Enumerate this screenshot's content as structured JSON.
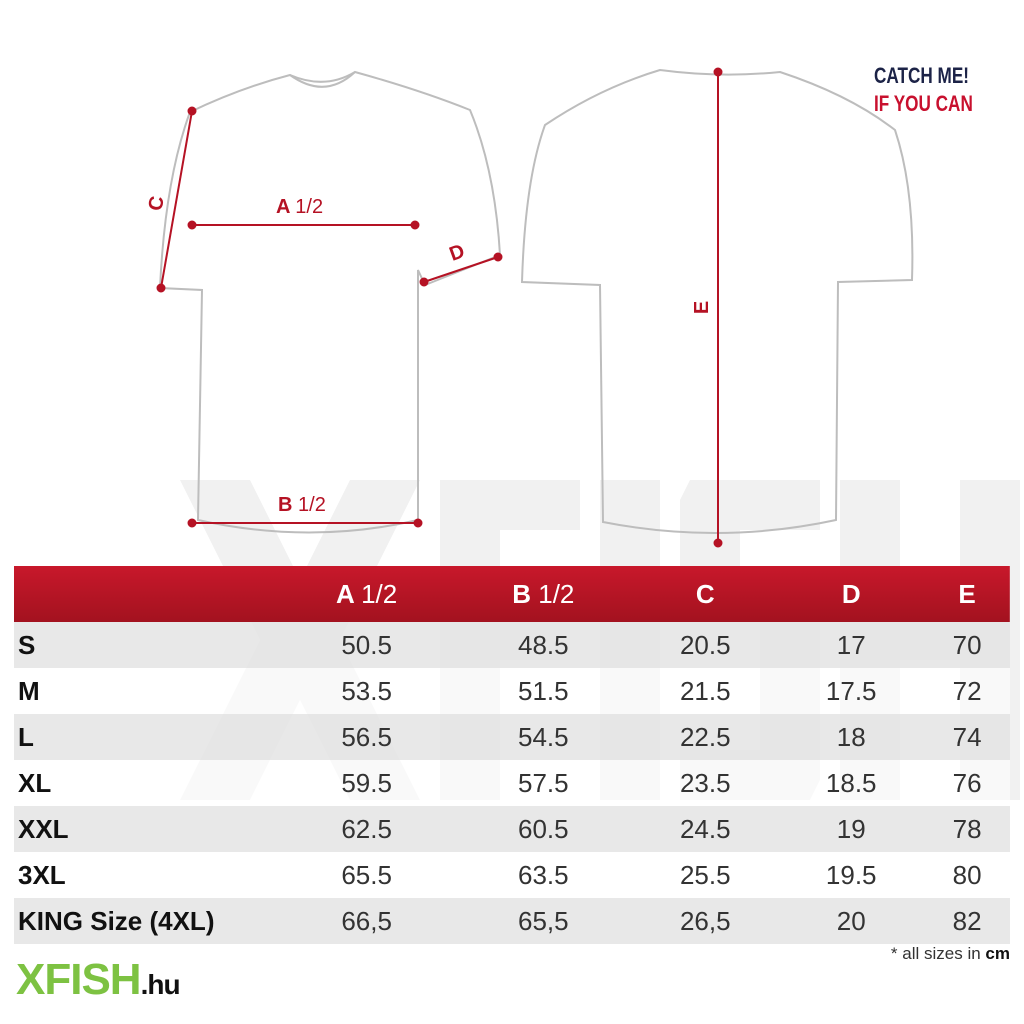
{
  "slogan": {
    "line1": "CATCH ME!",
    "line2": "IF YOU CAN"
  },
  "watermark": "XFISH",
  "diagram_labels": {
    "a": "A",
    "a_frac": "1/2",
    "b": "B",
    "b_frac": "1/2",
    "c": "C",
    "d": "D",
    "e": "E"
  },
  "colors": {
    "accent": "#c8182b",
    "logo_green": "#7dc242",
    "measure_line": "#b51224"
  },
  "table": {
    "headers": [
      {
        "letter": "A",
        "frac": "1/2"
      },
      {
        "letter": "B",
        "frac": "1/2"
      },
      {
        "letter": "C",
        "frac": ""
      },
      {
        "letter": "D",
        "frac": ""
      },
      {
        "letter": "E",
        "frac": ""
      }
    ],
    "rows": [
      {
        "size": "S",
        "values": [
          "50.5",
          "48.5",
          "20.5",
          "17",
          "70"
        ]
      },
      {
        "size": "M",
        "values": [
          "53.5",
          "51.5",
          "21.5",
          "17.5",
          "72"
        ]
      },
      {
        "size": "L",
        "values": [
          "56.5",
          "54.5",
          "22.5",
          "18",
          "74"
        ]
      },
      {
        "size": "XL",
        "values": [
          "59.5",
          "57.5",
          "23.5",
          "18.5",
          "76"
        ]
      },
      {
        "size": "XXL",
        "values": [
          "62.5",
          "60.5",
          "24.5",
          "19",
          "78"
        ]
      },
      {
        "size": "3XL",
        "values": [
          "65.5",
          "63.5",
          "25.5",
          "19.5",
          "80"
        ]
      },
      {
        "size": "KING Size (4XL)",
        "values": [
          "66,5",
          "65,5",
          "26,5",
          "20",
          "82"
        ]
      }
    ]
  },
  "note": {
    "prefix": "* all sizes in",
    "unit": "cm"
  },
  "logo": {
    "main": "XFISH",
    "suffix": ".hu"
  }
}
